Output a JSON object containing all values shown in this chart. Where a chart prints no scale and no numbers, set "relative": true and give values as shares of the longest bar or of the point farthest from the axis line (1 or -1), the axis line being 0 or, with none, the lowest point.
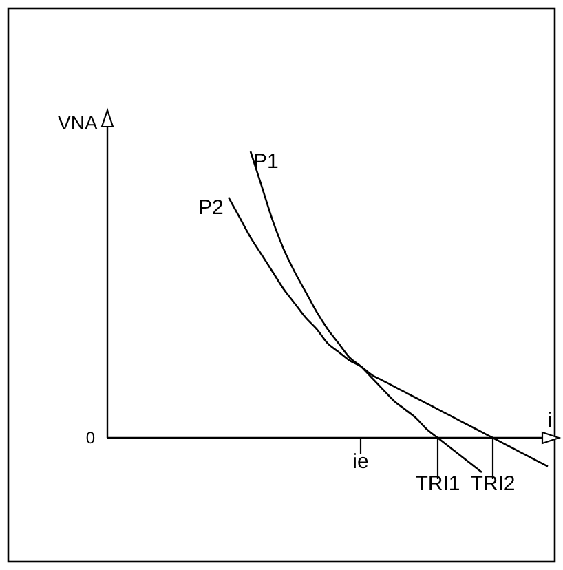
{
  "chart_data": {
    "type": "line",
    "relative": true,
    "xlabel": "i",
    "ylabel": "VNA",
    "annotations": [
      "0"
    ],
    "categories": [
      null,
      null,
      null,
      null,
      null,
      null,
      null,
      null,
      null,
      null,
      null,
      null,
      null,
      null,
      null,
      null,
      null,
      null,
      null,
      null,
      null,
      null,
      null,
      "ie",
      null,
      null,
      null,
      null,
      null,
      null,
      "TRI1",
      null,
      null,
      null,
      null,
      "TRI2",
      null,
      null,
      null,
      null,
      null
    ],
    "series": [
      {
        "name": "P1",
        "color": "#000000",
        "values": [
          null,
          null,
          null,
          null,
          null,
          null,
          null,
          null,
          null,
          null,
          null,
          null,
          null,
          1.0,
          0.88,
          0.76,
          0.66,
          0.58,
          0.51,
          0.44,
          0.38,
          0.33,
          0.28,
          0.25,
          0.21,
          0.17,
          0.13,
          0.1,
          0.07,
          0.03,
          0,
          -0.03,
          -0.06,
          -0.09,
          -0.12,
          null,
          null,
          null,
          null,
          null,
          null
        ]
      },
      {
        "name": "P2",
        "color": "#000000",
        "values": [
          null,
          null,
          null,
          null,
          null,
          null,
          null,
          null,
          null,
          null,
          null,
          0.84,
          0.77,
          0.7,
          0.64,
          0.58,
          0.52,
          0.47,
          0.42,
          0.38,
          0.33,
          0.3,
          0.27,
          0.25,
          0.22,
          0.2,
          0.18,
          0.16,
          0.14,
          0.12,
          0.1,
          0.08,
          0.06,
          0.04,
          0.02,
          0,
          -0.02,
          -0.04,
          -0.06,
          -0.08,
          -0.1
        ]
      }
    ],
    "marker": "none",
    "line_style": "solid"
  }
}
